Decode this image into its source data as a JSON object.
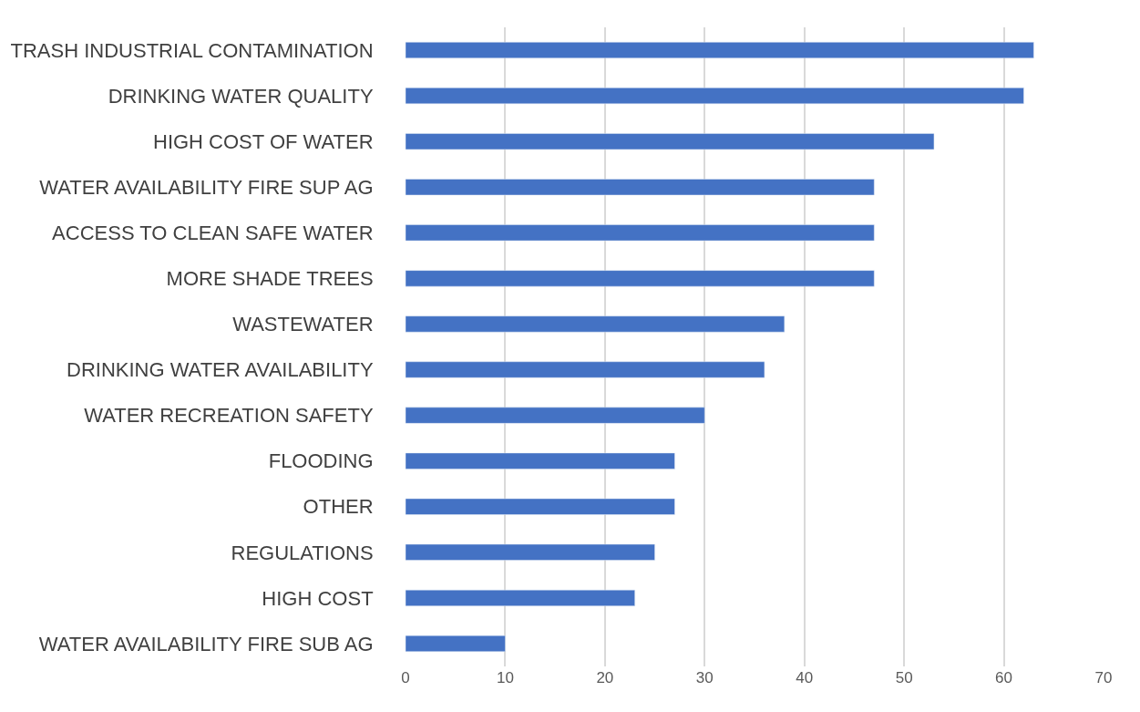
{
  "chart_data": {
    "type": "bar",
    "orientation": "horizontal",
    "categories": [
      "TRASH INDUSTRIAL CONTAMINATION",
      "DRINKING WATER QUALITY",
      "HIGH COST OF WATER",
      "WATER AVAILABILITY FIRE SUP AG",
      "ACCESS TO CLEAN SAFE WATER",
      "MORE SHADE TREES",
      "WASTEWATER",
      "DRINKING WATER AVAILABILITY",
      "WATER RECREATION SAFETY",
      "FLOODING",
      "OTHER",
      "REGULATIONS",
      "HIGH COST",
      "WATER AVAILABILITY FIRE SUB AG"
    ],
    "values": [
      63,
      62,
      53,
      47,
      47,
      47,
      38,
      36,
      30,
      27,
      27,
      25,
      23,
      10
    ],
    "color": "#4472c4",
    "xlim": [
      0,
      70
    ],
    "xticks": [
      0,
      10,
      20,
      30,
      40,
      50,
      60,
      70
    ],
    "grid": "x"
  }
}
